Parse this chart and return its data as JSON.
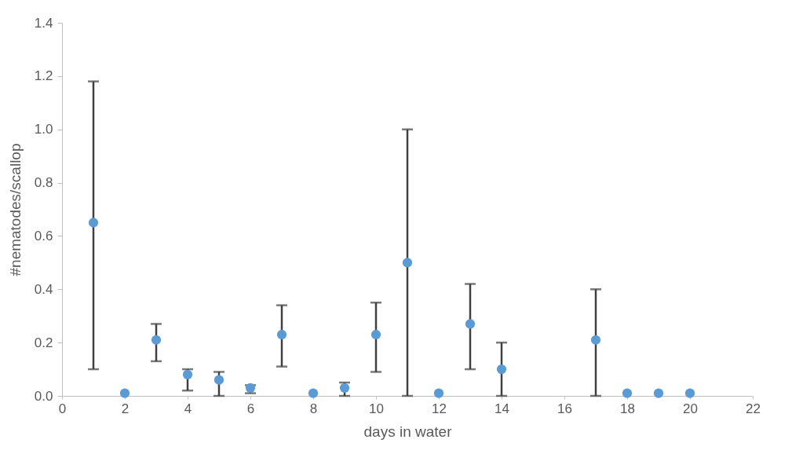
{
  "chart_data": {
    "type": "scatter",
    "xlabel": "days in water",
    "ylabel": "#nematodes/scallop",
    "x": [
      1,
      2,
      3,
      4,
      5,
      6,
      7,
      8,
      9,
      10,
      11,
      12,
      13,
      14,
      17,
      18,
      19,
      20
    ],
    "series": [
      {
        "color": "#5b9bd5",
        "values": [
          0.65,
          0.01,
          0.21,
          0.08,
          0.06,
          0.03,
          0.23,
          0.01,
          0.03,
          0.23,
          0.5,
          0.01,
          0.27,
          0.1,
          0.21,
          0.01,
          0.01,
          0.01
        ],
        "errors": [
          [
            0.1,
            1.18
          ],
          null,
          [
            0.13,
            0.27
          ],
          [
            0.02,
            0.1
          ],
          [
            0,
            0.09
          ],
          [
            0.01,
            0.04
          ],
          [
            0.11,
            0.34
          ],
          null,
          [
            0,
            0.05
          ],
          [
            0.09,
            0.35
          ],
          [
            0,
            1.0
          ],
          null,
          [
            0.1,
            0.42
          ],
          [
            0,
            0.2
          ],
          [
            0,
            0.4
          ],
          null,
          null,
          null
        ]
      }
    ],
    "xlim": [
      0,
      22
    ],
    "xticks": [
      0,
      2,
      4,
      6,
      8,
      10,
      12,
      14,
      16,
      18,
      20,
      22
    ],
    "ylim": [
      0,
      1.4
    ],
    "yticks": [
      {
        "value": 0,
        "label": "0.0"
      },
      {
        "value": 0.2,
        "label": "0.2"
      },
      {
        "value": 0.4,
        "label": "0.4"
      },
      {
        "value": 0.6,
        "label": "0.6"
      },
      {
        "value": 0.8,
        "label": "0.8"
      },
      {
        "value": 1.0,
        "label": "1.0"
      },
      {
        "value": 1.2,
        "label": "1.2"
      },
      {
        "value": 1.4,
        "label": "1.4"
      }
    ],
    "marker": "circle",
    "legend": false,
    "grid": false
  }
}
